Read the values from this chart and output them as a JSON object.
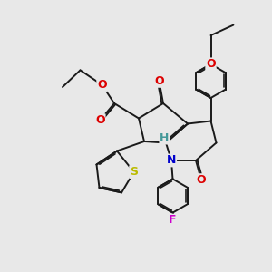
{
  "bg": "#e8e8e8",
  "bc": "#1a1a1a",
  "bw": 1.4,
  "sep": 0.055,
  "colors": {
    "O": "#dd0000",
    "N": "#0000cc",
    "S": "#bbbb00",
    "F": "#cc00cc",
    "H": "#449999"
  },
  "fs": 9.0,
  "xlim": [
    0,
    10
  ],
  "ylim": [
    0,
    10
  ]
}
